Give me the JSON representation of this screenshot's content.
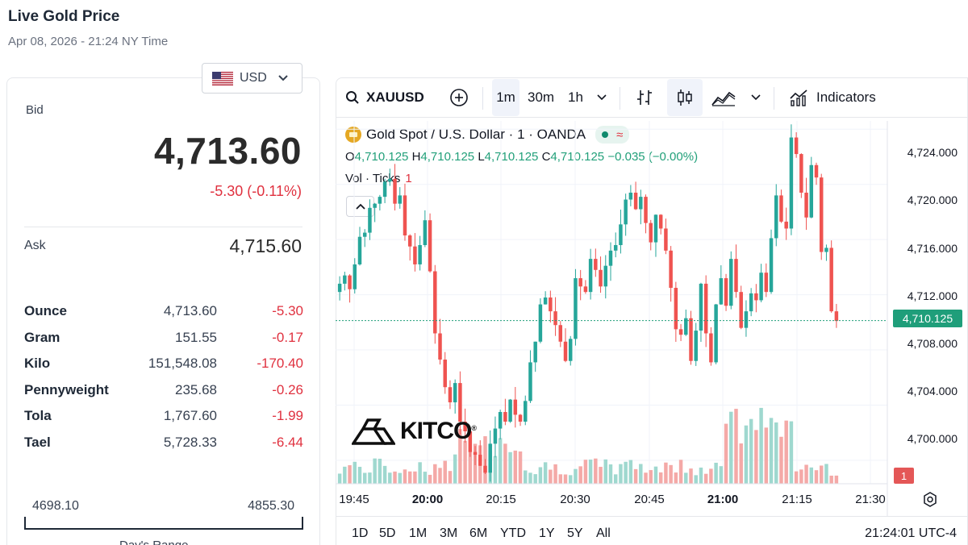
{
  "page": {
    "title": "Live Gold Price",
    "subtitle": "Apr 08, 2026 - 21:24 NY Time"
  },
  "currency": {
    "selected": "USD",
    "flag_icon": "us-flag-icon"
  },
  "quote": {
    "bid_label": "Bid",
    "bid": "4,713.60",
    "change": "-5.30 (-0.11%)",
    "ask_label": "Ask",
    "ask": "4,715.60"
  },
  "units": [
    {
      "name": "Ounce",
      "price": "4,713.60",
      "change": "-5.30"
    },
    {
      "name": "Gram",
      "price": "151.55",
      "change": "-0.17"
    },
    {
      "name": "Kilo",
      "price": "151,548.08",
      "change": "-170.40"
    },
    {
      "name": "Pennyweight",
      "price": "235.68",
      "change": "-0.26"
    },
    {
      "name": "Tola",
      "price": "1,767.60",
      "change": "-1.99"
    },
    {
      "name": "Tael",
      "price": "5,728.33",
      "change": "-6.44"
    }
  ],
  "range": {
    "low": "4698.10",
    "high": "4855.30",
    "label": "Day's Range"
  },
  "toolbar": {
    "symbol": "XAUUSD",
    "intervals": [
      "1m",
      "30m",
      "1h"
    ],
    "active_interval": "1m",
    "indicators_label": "Indicators"
  },
  "legend": {
    "title": "Gold Spot / U.S. Dollar · 1 · OANDA",
    "o_label": "O",
    "o": "4,710.125",
    "h_label": "H",
    "h": "4,710.125",
    "l_label": "L",
    "l": "4,710.125",
    "c_label": "C",
    "c": "4,710.125",
    "chg": "−0.035 (−0.00%)",
    "vol_label": "Vol · Ticks",
    "vol_value": "1"
  },
  "price_axis": [
    "4,724.000",
    "4,720.000",
    "4,716.000",
    "4,712.000",
    "4,708.000",
    "4,704.000",
    "4,700.000"
  ],
  "current_price_tag": "4,710.125",
  "volume_tag": "1",
  "time_axis": [
    {
      "label": "19:45",
      "bold": false
    },
    {
      "label": "20:00",
      "bold": true
    },
    {
      "label": "20:15",
      "bold": false
    },
    {
      "label": "20:30",
      "bold": false
    },
    {
      "label": "20:45",
      "bold": false
    },
    {
      "label": "21:00",
      "bold": true
    },
    {
      "label": "21:15",
      "bold": false
    },
    {
      "label": "21:30",
      "bold": false
    }
  ],
  "range_buttons": [
    "1D",
    "5D",
    "1M",
    "3M",
    "6M",
    "YTD",
    "1Y",
    "5Y",
    "All"
  ],
  "clock": "21:24:01 UTC-4",
  "watermark": "KITCO",
  "colors": {
    "up": "#26a69a",
    "down": "#ef5350",
    "negative_text": "#e0313f",
    "price_tag": "#1f9e7a"
  },
  "chart_data": {
    "type": "candlestick",
    "series_closes": [
      4712.8,
      4713.4,
      4712.4,
      4714.2,
      4716.2,
      4716.5,
      4718.3,
      4718.6,
      4719.1,
      4720.2,
      4720.4,
      4718.6,
      4719.2,
      4716.3,
      4715.5,
      4714.2,
      4715.6,
      4717.4,
      4713.7,
      4709.2,
      4707.3,
      4705.3,
      4704.2,
      4705.6,
      4702.8,
      4702.1,
      4700.6,
      4700.4,
      4699.6,
      4699.1,
      4701.2,
      4702.3,
      4703.5,
      4702.8,
      4704.4,
      4703.3,
      4702.8,
      4704.3,
      4707.1,
      4708.6,
      4711.3,
      4711.8,
      4710.8,
      4709.8,
      4708.6,
      4707.2,
      4708.8,
      4713.2,
      4712.6,
      4712.2,
      4714.6,
      4713.8,
      4712.6,
      4714.1,
      4715.2,
      4715.6,
      4717.1,
      4718.9,
      4719.4,
      4718.2,
      4719.1,
      4717.2,
      4715.8,
      4717.8,
      4716.8,
      4715.2,
      4712.5,
      4709.5,
      4709.1,
      4710.3,
      4707.2,
      4709.4,
      4712.8,
      4709.2,
      4707.1,
      4711.3,
      4713.2,
      4711.2,
      4714.6,
      4712.2,
      4709.6,
      4710.8,
      4712.1,
      4711.6,
      4713.6,
      4712.2,
      4716.1,
      4719.2,
      4717.3,
      4716.8,
      4723.4,
      4722.2,
      4719.4,
      4717.6,
      4721.4,
      4720.5,
      4715.1,
      4715.4,
      4710.8,
      4710.1
    ],
    "y_range": [
      4698.3,
      4724.6
    ],
    "x_range": [
      "19:45",
      "21:30"
    ],
    "current_price": 4710.125
  }
}
